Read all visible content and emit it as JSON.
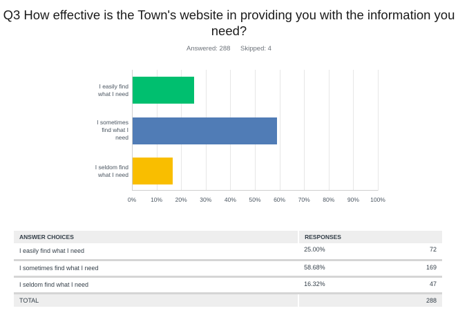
{
  "title": "Q3 How effective is the Town's website in providing you with the information you need?",
  "stats": {
    "answered": "Answered: 288",
    "skipped": "Skipped: 4"
  },
  "chart_data": {
    "type": "bar",
    "orientation": "horizontal",
    "title": "Q3 How effective is the Town's website in providing you with the information you need?",
    "categories": [
      "I easily find what I need",
      "I sometimes find what I need",
      "I seldom find what I need"
    ],
    "values": [
      25.0,
      58.68,
      16.32
    ],
    "colors": [
      "#00bf6f",
      "#507cb6",
      "#f9be00"
    ],
    "xlabel": "",
    "ylabel": "",
    "xlim": [
      0,
      100
    ],
    "xticks": [
      "0%",
      "10%",
      "20%",
      "30%",
      "40%",
      "50%",
      "60%",
      "70%",
      "80%",
      "90%",
      "100%"
    ],
    "grid": true,
    "legend": false
  },
  "chart_labels": {
    "bar0": [
      "I easily find",
      "what I need"
    ],
    "bar1": [
      "I sometimes",
      "find what I",
      "need"
    ],
    "bar2": [
      "I seldom find",
      "what I need"
    ]
  },
  "table": {
    "headers": {
      "choices": "ANSWER CHOICES",
      "responses": "RESPONSES"
    },
    "rows": [
      {
        "choice": "I easily find what I need",
        "percent": "25.00%",
        "count": "72"
      },
      {
        "choice": "I sometimes find what I need",
        "percent": "58.68%",
        "count": "169"
      },
      {
        "choice": "I seldom find what I need",
        "percent": "16.32%",
        "count": "47"
      }
    ],
    "total": {
      "label": "TOTAL",
      "count": "288"
    }
  }
}
